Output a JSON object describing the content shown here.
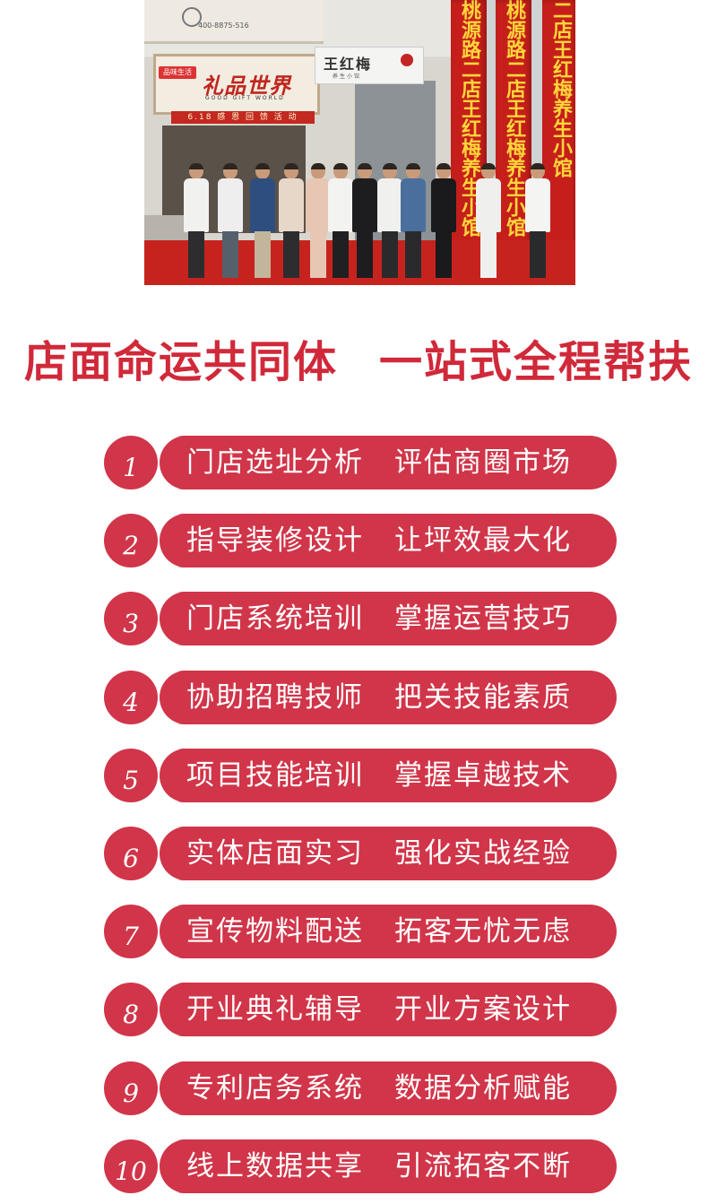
{
  "photo": {
    "top_sign": "400-8875-516",
    "shop_tag": "品味生活",
    "shop_name": "礼品世界",
    "shop_sub": "GOOD GIFT WORLD",
    "promo_strip": "6.18 感 恩 回 馈 活 动",
    "store_name": "王红梅",
    "store_sub": "养生小馆",
    "banners": [
      "桃源路二店王红梅养生小馆",
      "桃源路二店王红梅养生小馆",
      "二店王红梅养生小馆"
    ]
  },
  "headline": {
    "left": "店面命运共同体",
    "right": "一站式全程帮扶"
  },
  "services": [
    {
      "num": "1",
      "left": "门店选址分析",
      "right": "评估商圈市场"
    },
    {
      "num": "2",
      "left": "指导装修设计",
      "right": "让坪效最大化"
    },
    {
      "num": "3",
      "left": "门店系统培训",
      "right": "掌握运营技巧"
    },
    {
      "num": "4",
      "left": "协助招聘技师",
      "right": "把关技能素质"
    },
    {
      "num": "5",
      "left": "项目技能培训",
      "right": "掌握卓越技术"
    },
    {
      "num": "6",
      "left": "实体店面实习",
      "right": "强化实战经验"
    },
    {
      "num": "7",
      "left": "宣传物料配送",
      "right": "拓客无忧无虑"
    },
    {
      "num": "8",
      "left": "开业典礼辅导",
      "right": "开业方案设计"
    },
    {
      "num": "9",
      "left": "专利店务系统",
      "right": "数据分析赋能"
    },
    {
      "num": "10",
      "left": "线上数据共享",
      "right": "引流拓客不断"
    }
  ],
  "colors": {
    "accent": "#d13549",
    "headline": "#d0293a"
  }
}
